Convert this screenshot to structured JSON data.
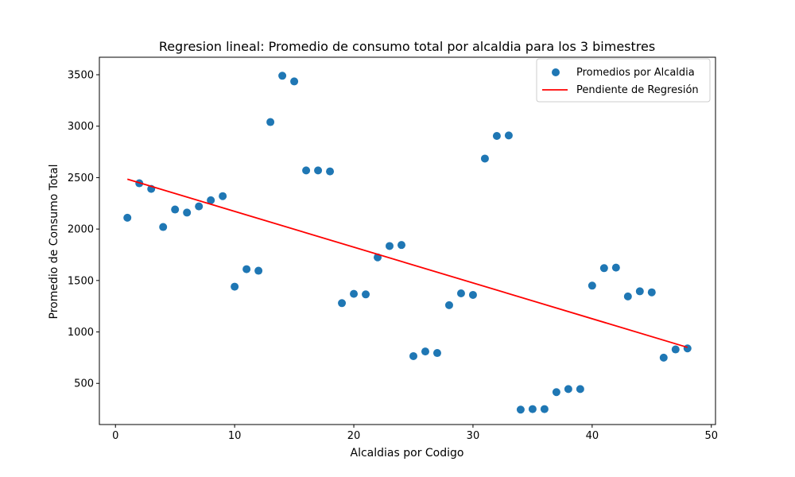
{
  "chart_data": {
    "type": "scatter",
    "title": "Regresion lineal: Promedio de consumo total por alcaldia para los 3 bimestres",
    "xlabel": "Alcaldias por Codigo",
    "ylabel": "Promedio de Consumo Total",
    "xlim": [
      -1.35,
      50.35
    ],
    "ylim": [
      100,
      3670
    ],
    "x_ticks": [
      0,
      10,
      20,
      30,
      40,
      50
    ],
    "x_tick_labels": [
      "0",
      "10",
      "20",
      "30",
      "40",
      "50"
    ],
    "y_ticks": [
      500,
      1000,
      1500,
      2000,
      2500,
      3000,
      3500
    ],
    "y_tick_labels": [
      "500",
      "1000",
      "1500",
      "2000",
      "2500",
      "3000",
      "3500"
    ],
    "grid": false,
    "legend_position": "top-right",
    "series": [
      {
        "name": "Promedios por Alcaldia",
        "kind": "scatter",
        "color": "#1f77b4",
        "x": [
          1,
          2,
          3,
          4,
          5,
          6,
          7,
          8,
          9,
          10,
          11,
          12,
          13,
          14,
          15,
          16,
          17,
          18,
          19,
          20,
          21,
          22,
          23,
          24,
          25,
          26,
          27,
          28,
          29,
          30,
          31,
          32,
          33,
          34,
          35,
          36,
          37,
          38,
          39,
          40,
          41,
          42,
          43,
          44,
          45,
          46,
          47,
          48
        ],
        "y": [
          2110,
          2445,
          2390,
          2020,
          2190,
          2160,
          2220,
          2280,
          2320,
          1440,
          1610,
          1595,
          3040,
          3490,
          3435,
          2570,
          2570,
          2560,
          1280,
          1370,
          1365,
          1725,
          1835,
          1845,
          765,
          810,
          795,
          1260,
          1375,
          1360,
          2685,
          2905,
          2910,
          245,
          250,
          250,
          415,
          445,
          445,
          1450,
          1620,
          1625,
          1345,
          1395,
          1385,
          750,
          830,
          840
        ]
      },
      {
        "name": "Pendiente de Regresión",
        "kind": "line",
        "color": "#ff0000",
        "x": [
          1,
          48
        ],
        "y": [
          2485,
          850
        ]
      }
    ]
  }
}
